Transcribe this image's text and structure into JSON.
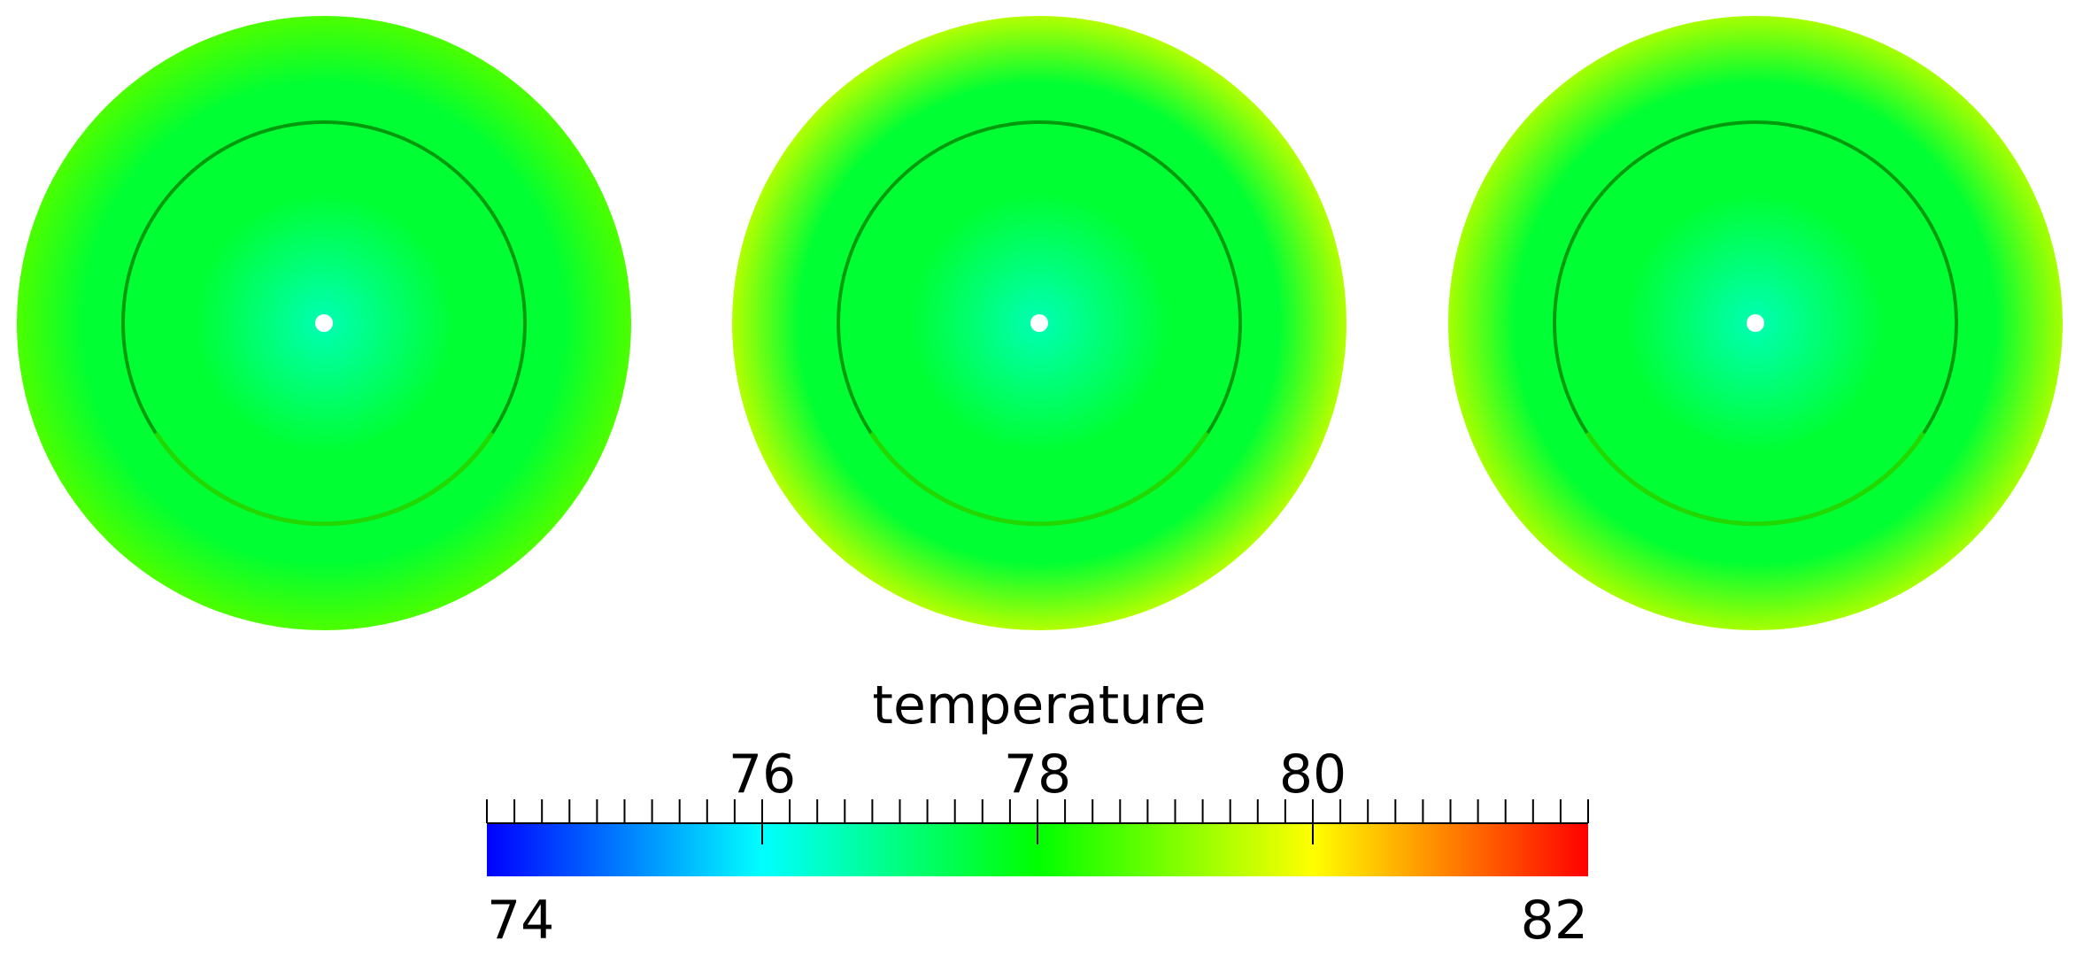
{
  "colorbar": {
    "title": "temperature",
    "min_label": "74",
    "max_label": "82",
    "min": 74,
    "max": 82,
    "major_ticks": [
      {
        "value": 76,
        "label": "76"
      },
      {
        "value": 78,
        "label": "78"
      },
      {
        "value": 80,
        "label": "80"
      }
    ],
    "minor_tick_step": 0.2,
    "colormap": [
      "#0000ff",
      "#00ffff",
      "#00ff00",
      "#ffff00",
      "#ff0000"
    ]
  },
  "panels": [
    {
      "id": "left",
      "center_temp": 76.6,
      "inner_temp": 77.6,
      "outer_temp": 78.6
    },
    {
      "id": "middle",
      "center_temp": 76.6,
      "inner_temp": 77.6,
      "outer_temp": 79.4
    },
    {
      "id": "right",
      "center_temp": 76.6,
      "inner_temp": 77.6,
      "outer_temp": 79.3
    }
  ]
}
